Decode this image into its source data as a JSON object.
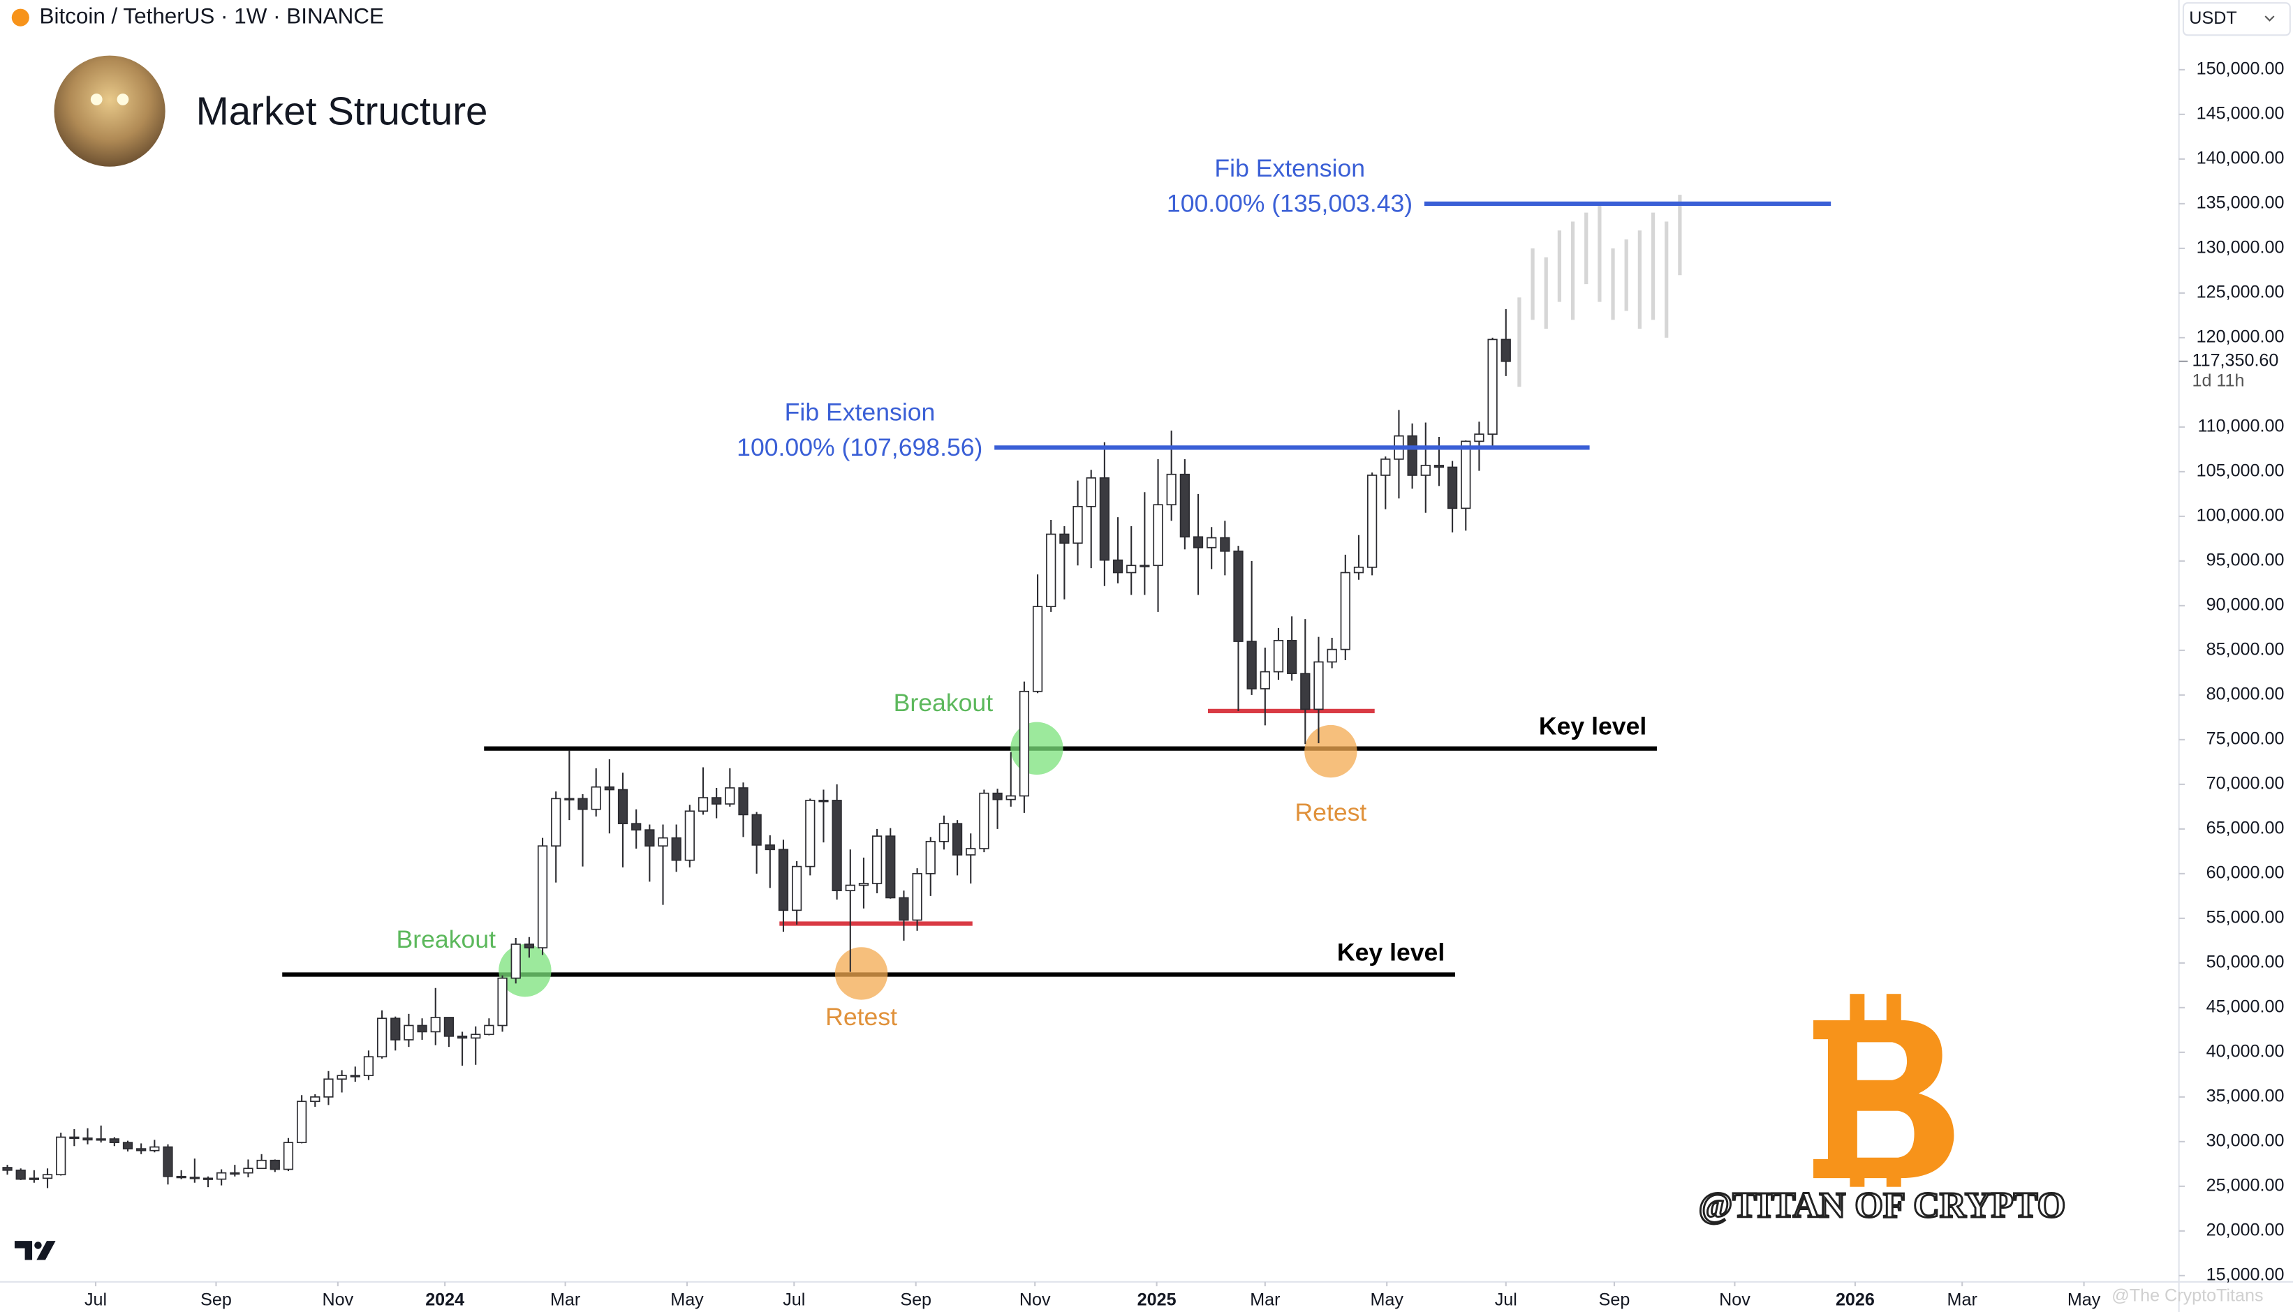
{
  "header": {
    "symbol": "Bitcoin / TetherUS · 1W · BINANCE",
    "title": "Market Structure",
    "currency": "USDT"
  },
  "chart_data": {
    "type": "candlestick",
    "open": [
      27100,
      26800,
      25800,
      25900,
      26300,
      30500,
      30400,
      30200,
      30300,
      29900,
      29200,
      29000,
      29400,
      26100,
      26000,
      25900,
      25800,
      26500,
      26500,
      27000,
      27900,
      26900,
      29900,
      34500,
      35000,
      37000,
      37400,
      37400,
      39500,
      43800,
      41400,
      43000,
      42300,
      43900,
      41800,
      41600,
      42000,
      43000,
      48300,
      52100,
      51700,
      63100,
      68400,
      68400,
      67200,
      69700,
      69400,
      65600,
      64900,
      63100,
      64000,
      61500,
      67000,
      68500,
      67800,
      69600,
      66600,
      63200,
      62700,
      55900,
      60800,
      68200,
      68200,
      58100,
      58700,
      58900,
      64200,
      57300,
      54800,
      60000,
      63600,
      65600,
      62100,
      62800,
      69000,
      68300,
      68700,
      80400,
      89900,
      98000,
      97000,
      101100,
      104300,
      95100,
      93700,
      94500,
      94500,
      101300,
      104700,
      97700,
      96500,
      97600,
      96100,
      86000,
      80700,
      82600,
      86100,
      82400,
      78400,
      83700,
      85100,
      93700,
      94300,
      104600,
      106400,
      109000,
      104600,
      105700,
      105500,
      100900,
      108400,
      109200,
      119800
    ],
    "high": [
      27400,
      27000,
      26800,
      27000,
      31000,
      31400,
      31500,
      31800,
      30500,
      30100,
      29800,
      30200,
      29700,
      26800,
      28100,
      26100,
      26900,
      27400,
      28000,
      28600,
      28000,
      30400,
      35200,
      35300,
      37900,
      38000,
      38400,
      40200,
      44700,
      44000,
      44300,
      43800,
      47200,
      43900,
      42300,
      42900,
      43800,
      48600,
      52800,
      52900,
      64000,
      69200,
      73800,
      68900,
      71800,
      72800,
      71300,
      67200,
      65500,
      65500,
      65500,
      67700,
      71900,
      69600,
      71800,
      70200,
      66900,
      64300,
      63800,
      61400,
      68400,
      69400,
      70000,
      62700,
      61800,
      65000,
      65100,
      58100,
      60600,
      64100,
      66500,
      66000,
      64500,
      69400,
      69500,
      73600,
      81500,
      93500,
      99600,
      98900,
      104000,
      105200,
      108300,
      99900,
      98900,
      102700,
      106400,
      109600,
      106400,
      102500,
      98800,
      99500,
      96700,
      95000,
      85300,
      87500,
      88800,
      88500,
      86500,
      86400,
      95700,
      97900,
      104900,
      106700,
      111900,
      110400,
      110500,
      108900,
      106200,
      108500,
      110600,
      120000,
      123200
    ],
    "low": [
      26300,
      25700,
      25400,
      24800,
      26200,
      29500,
      29700,
      29900,
      29500,
      28900,
      28600,
      28800,
      25200,
      25800,
      25400,
      24900,
      25100,
      26100,
      26000,
      27000,
      26600,
      26700,
      29800,
      33900,
      34100,
      35500,
      36700,
      36900,
      39300,
      40200,
      40600,
      41400,
      40800,
      40600,
      38500,
      38600,
      41900,
      42300,
      47700,
      50600,
      50900,
      59000,
      66000,
      60800,
      66400,
      64500,
      60700,
      62800,
      59100,
      56500,
      60200,
      60700,
      66600,
      66200,
      67500,
      64100,
      60000,
      58400,
      53500,
      54300,
      59800,
      63500,
      57100,
      49000,
      56100,
      57800,
      57200,
      52500,
      53600,
      57500,
      62700,
      59800,
      58900,
      62400,
      65000,
      67500,
      66800,
      80200,
      89300,
      90700,
      94500,
      94200,
      92200,
      92500,
      91200,
      91200,
      89300,
      99500,
      96300,
      91200,
      94100,
      93400,
      78200,
      80000,
      76600,
      81700,
      81600,
      74500,
      74600,
      83000,
      83900,
      92900,
      93400,
      100800,
      102000,
      103100,
      100400,
      103400,
      98200,
      98400,
      105100,
      107500,
      115700
    ],
    "close": [
      26800,
      25800,
      25900,
      26300,
      30500,
      30400,
      30200,
      30300,
      29900,
      29200,
      29000,
      29400,
      26100,
      26000,
      25900,
      25800,
      26500,
      26500,
      27000,
      27900,
      26900,
      29900,
      34500,
      35000,
      37000,
      37400,
      37400,
      39500,
      43800,
      41400,
      43000,
      42300,
      43900,
      41800,
      41600,
      42000,
      43000,
      48300,
      52100,
      51700,
      63100,
      68400,
      68400,
      67200,
      69700,
      69400,
      65600,
      64900,
      63100,
      64000,
      61500,
      67000,
      68500,
      67800,
      69600,
      66600,
      63200,
      62700,
      55900,
      60800,
      68200,
      68200,
      58100,
      58700,
      58900,
      64200,
      57300,
      54800,
      60000,
      63600,
      65600,
      62100,
      62800,
      69000,
      68300,
      68700,
      80400,
      89900,
      98000,
      97000,
      101100,
      104300,
      95100,
      93700,
      94500,
      94500,
      101300,
      104700,
      97700,
      96500,
      97600,
      96100,
      86000,
      80700,
      82600,
      86100,
      82400,
      78400,
      83700,
      85100,
      93700,
      94300,
      104600,
      106400,
      109000,
      104600,
      105700,
      105500,
      100900,
      108400,
      109200,
      119800,
      117350.6
    ],
    "color_up": "#ffffff",
    "color_down": "#3b3b40",
    "wick_color": "#2b2b30",
    "projection_high": [
      124500,
      130000,
      129000,
      132000,
      133000,
      134000,
      135000,
      130000,
      131000,
      132000,
      134000,
      133000,
      136000
    ],
    "projection_low": [
      114500,
      122000,
      121000,
      124000,
      122000,
      126000,
      124000,
      122000,
      123000,
      121000,
      122000,
      120000,
      127000
    ],
    "projection_color": "#d6d6d6",
    "xlim": [
      -0.55,
      162.3
    ],
    "xticks": [
      {
        "value": 6.6,
        "label": "Jul"
      },
      {
        "value": 15.6,
        "label": "Sep"
      },
      {
        "value": 24.7,
        "label": "Nov"
      },
      {
        "value": 32.7,
        "label": "2024"
      },
      {
        "value": 41.7,
        "label": "Mar"
      },
      {
        "value": 50.8,
        "label": "May"
      },
      {
        "value": 58.8,
        "label": "Jul"
      },
      {
        "value": 67.9,
        "label": "Sep"
      },
      {
        "value": 76.8,
        "label": "Nov"
      },
      {
        "value": 85.9,
        "label": "2025"
      },
      {
        "value": 94.0,
        "label": "Mar"
      },
      {
        "value": 103.1,
        "label": "May"
      },
      {
        "value": 112.0,
        "label": "Jul"
      },
      {
        "value": 120.1,
        "label": "Sep"
      },
      {
        "value": 129.1,
        "label": "Nov"
      },
      {
        "value": 138.1,
        "label": "2026"
      },
      {
        "value": 146.1,
        "label": "Mar"
      },
      {
        "value": 155.2,
        "label": "May"
      }
    ],
    "ylim": [
      14300,
      157800
    ],
    "yticks": [
      {
        "value": 15000,
        "label": "15,000.00"
      },
      {
        "value": 20000,
        "label": "20,000.00"
      },
      {
        "value": 25000,
        "label": "25,000.00"
      },
      {
        "value": 30000,
        "label": "30,000.00"
      },
      {
        "value": 35000,
        "label": "35,000.00"
      },
      {
        "value": 40000,
        "label": "40,000.00"
      },
      {
        "value": 45000,
        "label": "45,000.00"
      },
      {
        "value": 50000,
        "label": "50,000.00"
      },
      {
        "value": 55000,
        "label": "55,000.00"
      },
      {
        "value": 60000,
        "label": "60,000.00"
      },
      {
        "value": 65000,
        "label": "65,000.00"
      },
      {
        "value": 70000,
        "label": "70,000.00"
      },
      {
        "value": 75000,
        "label": "75,000.00"
      },
      {
        "value": 80000,
        "label": "80,000.00"
      },
      {
        "value": 85000,
        "label": "85,000.00"
      },
      {
        "value": 90000,
        "label": "90,000.00"
      },
      {
        "value": 95000,
        "label": "95,000.00"
      },
      {
        "value": 100000,
        "label": "100,000.00"
      },
      {
        "value": 105000,
        "label": "105,000.00"
      },
      {
        "value": 110000,
        "label": "110,000.00"
      },
      {
        "value": 120000,
        "label": "120,000.00"
      },
      {
        "value": 125000,
        "label": "125,000.00"
      },
      {
        "value": 130000,
        "label": "130,000.00"
      },
      {
        "value": 135000,
        "label": "135,000.00"
      },
      {
        "value": 140000,
        "label": "140,000.00"
      },
      {
        "value": 145000,
        "label": "145,000.00"
      },
      {
        "value": 150000,
        "label": "150,000.00"
      }
    ],
    "last_price": {
      "value": 117350.6,
      "label": "117,350.60"
    },
    "countdown": "1d 11h",
    "grid": false,
    "fib_levels": [
      {
        "title": "Fib Extension",
        "value": 107698.56,
        "label": "100.00% (107,698.56)",
        "color": "#3a5fd6"
      },
      {
        "title": "Fib Extension",
        "value": 135003.43,
        "label": "100.00% (135,003.43)",
        "color": "#3a5fd6"
      }
    ],
    "key_levels": [
      {
        "value": 74000,
        "label": "Key level"
      },
      {
        "value": 48700,
        "label": "Key level"
      }
    ],
    "retest_levels": [
      54400,
      78200
    ],
    "breakout_labels": [
      "Breakout",
      "Breakout"
    ],
    "retest_labels": [
      "Retest",
      "Retest"
    ]
  },
  "watermark": "@TITAN OF CRYPTO",
  "credit": "@The CryptoTitans"
}
